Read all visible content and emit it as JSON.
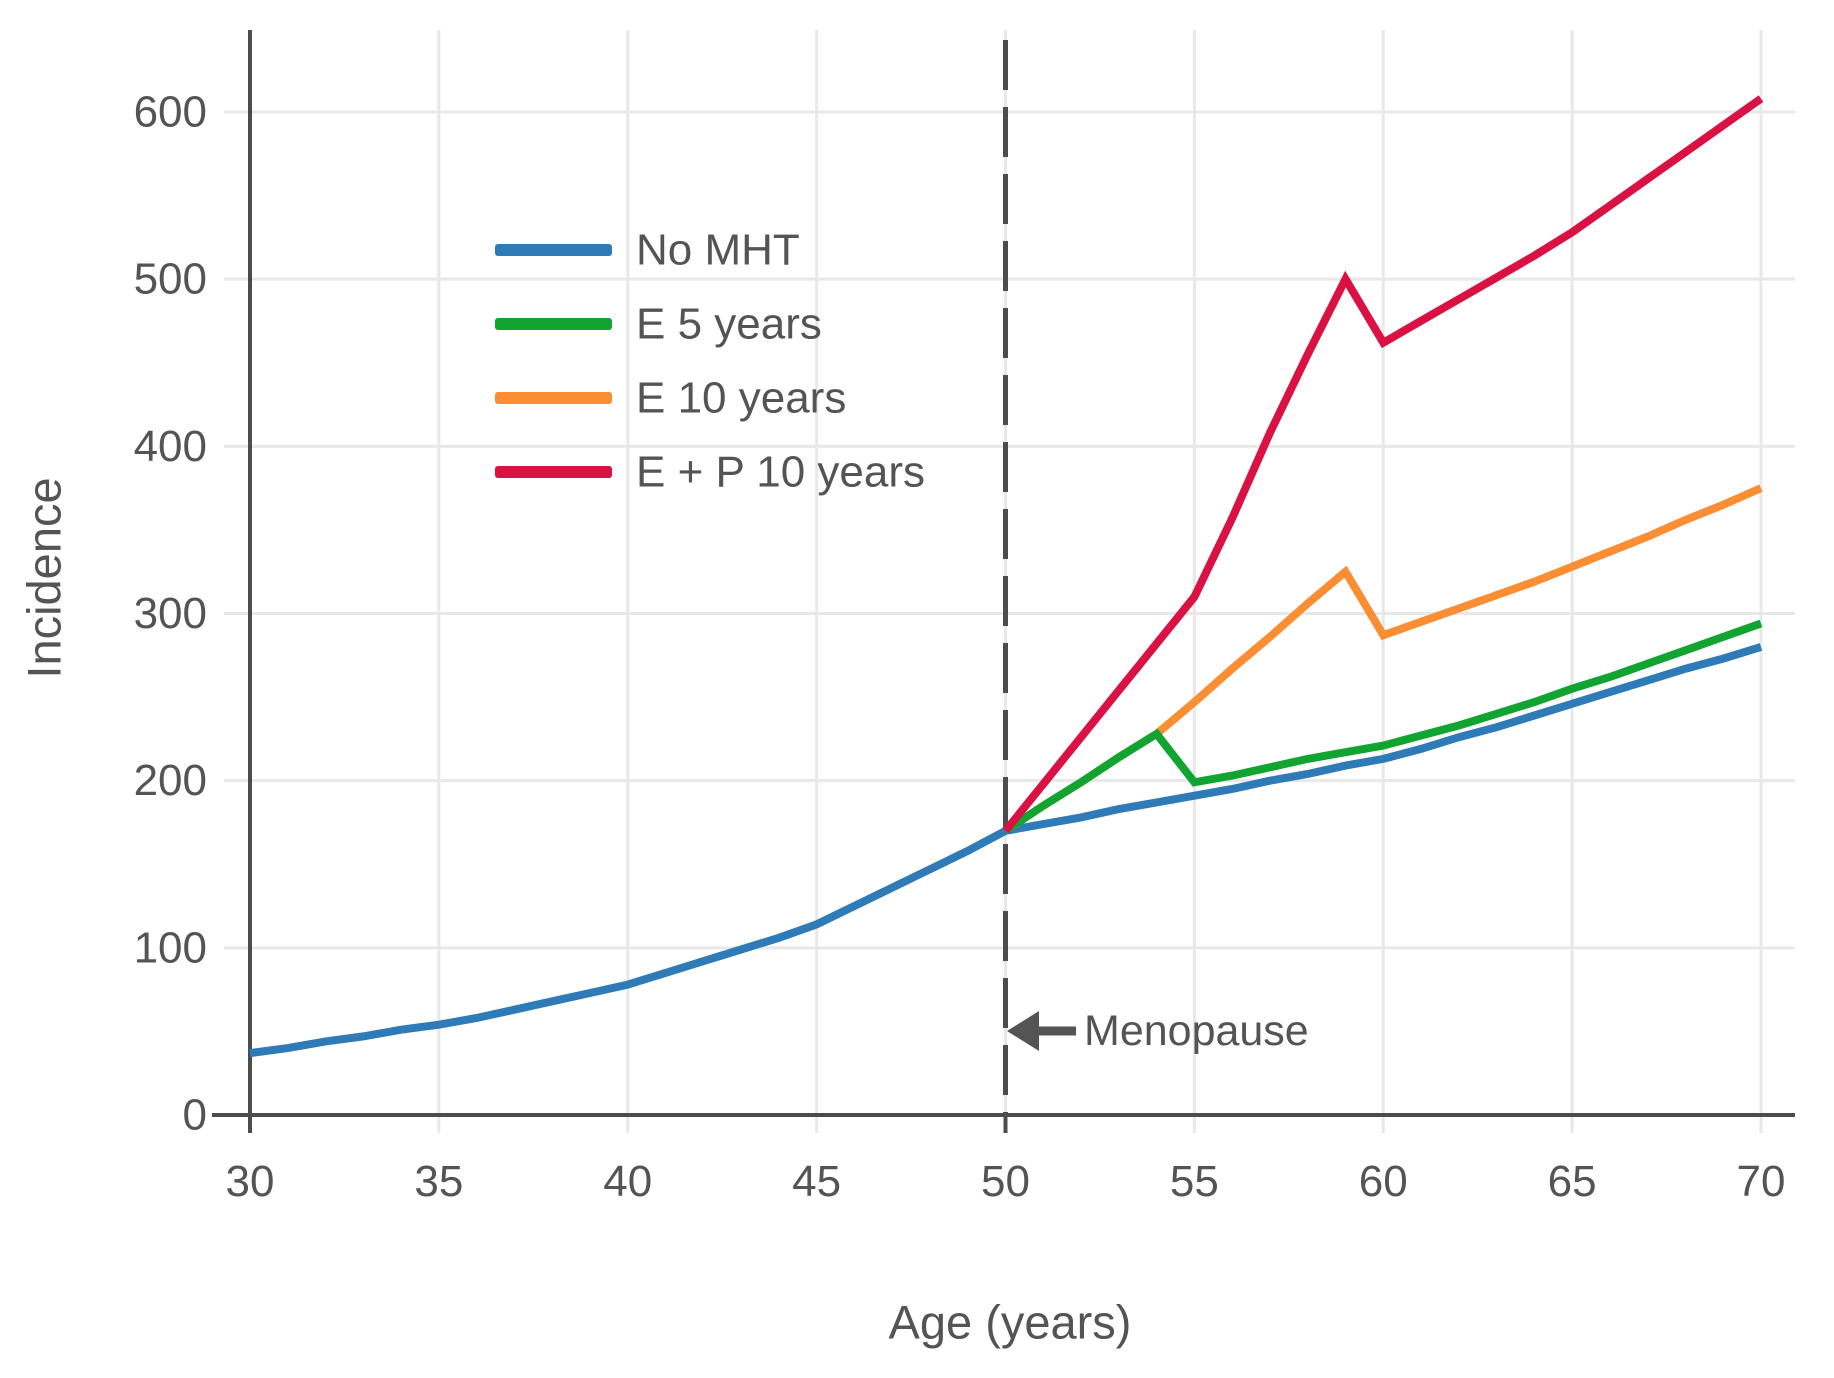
{
  "chart_data": {
    "type": "line",
    "title": "",
    "xlabel": "Age (years)",
    "ylabel": "Incidence",
    "x_ticks": [
      30,
      35,
      40,
      45,
      50,
      55,
      60,
      65,
      70
    ],
    "y_ticks": [
      0,
      100,
      200,
      300,
      400,
      500,
      600
    ],
    "xlim": [
      30,
      70.9
    ],
    "ylim": [
      0,
      648
    ],
    "grid": true,
    "legend_position": "upper-left-inside",
    "annotations": {
      "menopause": {
        "label": "Menopause",
        "x": 50,
        "arrow": "left"
      }
    },
    "style": {
      "axis_color": "#4c4c4c",
      "grid_color": "#e8e8e8",
      "text_color": "#545454",
      "dashed_line_color": "#4c4c4c",
      "background": "#ffffff"
    },
    "draw_order": [
      0,
      2,
      1,
      3
    ],
    "series": [
      {
        "name": "No MHT",
        "color": "#2e7bb8",
        "points": [
          [
            30,
            37
          ],
          [
            31,
            40
          ],
          [
            32,
            44
          ],
          [
            33,
            47
          ],
          [
            34,
            51
          ],
          [
            35,
            54
          ],
          [
            36,
            58
          ],
          [
            37,
            63
          ],
          [
            38,
            68
          ],
          [
            39,
            73
          ],
          [
            40,
            78
          ],
          [
            41,
            85
          ],
          [
            42,
            92
          ],
          [
            43,
            99
          ],
          [
            44,
            106
          ],
          [
            45,
            114
          ],
          [
            46,
            125
          ],
          [
            47,
            136
          ],
          [
            48,
            147
          ],
          [
            49,
            158
          ],
          [
            50,
            170
          ],
          [
            51,
            174
          ],
          [
            52,
            178
          ],
          [
            53,
            183
          ],
          [
            54,
            187
          ],
          [
            55,
            191
          ],
          [
            56,
            195
          ],
          [
            57,
            200
          ],
          [
            58,
            204
          ],
          [
            59,
            209
          ],
          [
            60,
            213
          ],
          [
            61,
            219
          ],
          [
            62,
            226
          ],
          [
            63,
            232
          ],
          [
            64,
            239
          ],
          [
            65,
            246
          ],
          [
            66,
            253
          ],
          [
            67,
            260
          ],
          [
            68,
            267
          ],
          [
            69,
            273
          ],
          [
            70,
            280
          ]
        ]
      },
      {
        "name": "E 5 years",
        "color": "#12a430",
        "points": [
          [
            50,
            170
          ],
          [
            51,
            185
          ],
          [
            52,
            199
          ],
          [
            53,
            214
          ],
          [
            54,
            228
          ],
          [
            55,
            199
          ],
          [
            56,
            203
          ],
          [
            57,
            208
          ],
          [
            58,
            213
          ],
          [
            59,
            217
          ],
          [
            60,
            221
          ],
          [
            61,
            227
          ],
          [
            62,
            233
          ],
          [
            63,
            240
          ],
          [
            64,
            247
          ],
          [
            65,
            255
          ],
          [
            66,
            262
          ],
          [
            67,
            270
          ],
          [
            68,
            278
          ],
          [
            69,
            286
          ],
          [
            70,
            294
          ]
        ]
      },
      {
        "name": "E 10 years",
        "color": "#fb8d33",
        "points": [
          [
            50,
            170
          ],
          [
            51,
            185
          ],
          [
            52,
            199
          ],
          [
            53,
            214
          ],
          [
            54,
            228
          ],
          [
            55,
            247
          ],
          [
            56,
            267
          ],
          [
            57,
            286
          ],
          [
            58,
            306
          ],
          [
            59,
            325
          ],
          [
            60,
            287
          ],
          [
            61,
            295
          ],
          [
            62,
            303
          ],
          [
            63,
            311
          ],
          [
            64,
            319
          ],
          [
            65,
            328
          ],
          [
            66,
            337
          ],
          [
            67,
            346
          ],
          [
            68,
            356
          ],
          [
            69,
            365
          ],
          [
            70,
            375
          ]
        ]
      },
      {
        "name": "E + P 10 years",
        "color": "#da1243",
        "points": [
          [
            50,
            170
          ],
          [
            51,
            198
          ],
          [
            52,
            226
          ],
          [
            53,
            254
          ],
          [
            54,
            282
          ],
          [
            55,
            310
          ],
          [
            56,
            357
          ],
          [
            57,
            408
          ],
          [
            58,
            455
          ],
          [
            59,
            500
          ],
          [
            60,
            462
          ],
          [
            61,
            475
          ],
          [
            62,
            488
          ],
          [
            63,
            501
          ],
          [
            64,
            514
          ],
          [
            65,
            528
          ],
          [
            66,
            544
          ],
          [
            67,
            560
          ],
          [
            68,
            576
          ],
          [
            69,
            592
          ],
          [
            70,
            608
          ]
        ]
      }
    ]
  }
}
